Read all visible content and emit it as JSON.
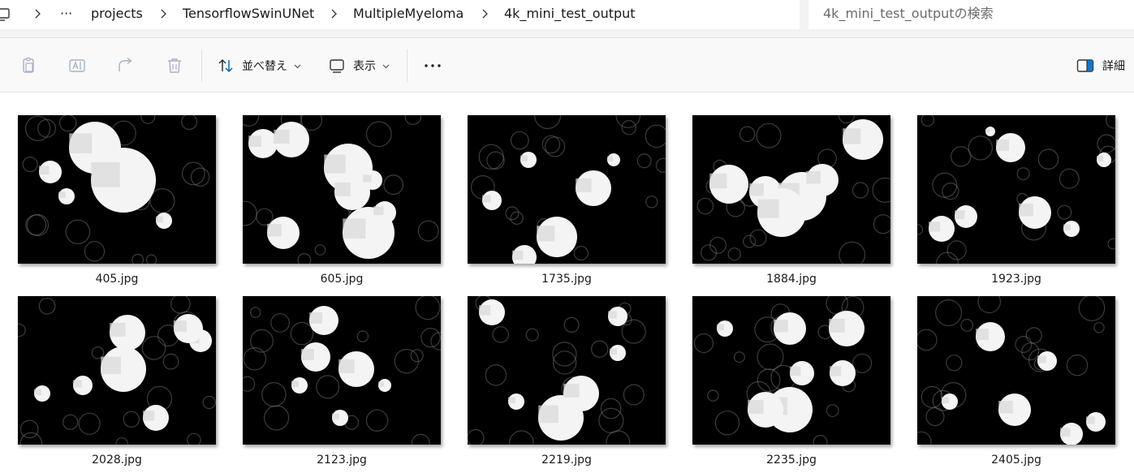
{
  "address_bar": {
    "items": [
      "···",
      "projects",
      "TensorflowSwinUNet",
      "MultipleMyeloma",
      "4k_mini_test_output"
    ]
  },
  "search": {
    "placeholder": "4k_mini_test_outputの検索"
  },
  "toolbar": {
    "sort_label": "並べ替え",
    "view_label": "表示",
    "details_label": "詳細"
  },
  "files": [
    {
      "name": "405.jpg"
    },
    {
      "name": "605.jpg"
    },
    {
      "name": "1735.jpg"
    },
    {
      "name": "1884.jpg"
    },
    {
      "name": "1923.jpg"
    },
    {
      "name": "2028.jpg"
    },
    {
      "name": "2123.jpg"
    },
    {
      "name": "2219.jpg"
    },
    {
      "name": "2235.jpg"
    },
    {
      "name": "2405.jpg"
    }
  ],
  "colors": {
    "accent": "#0067c0",
    "disabled_icon": "#a6b3c4"
  }
}
